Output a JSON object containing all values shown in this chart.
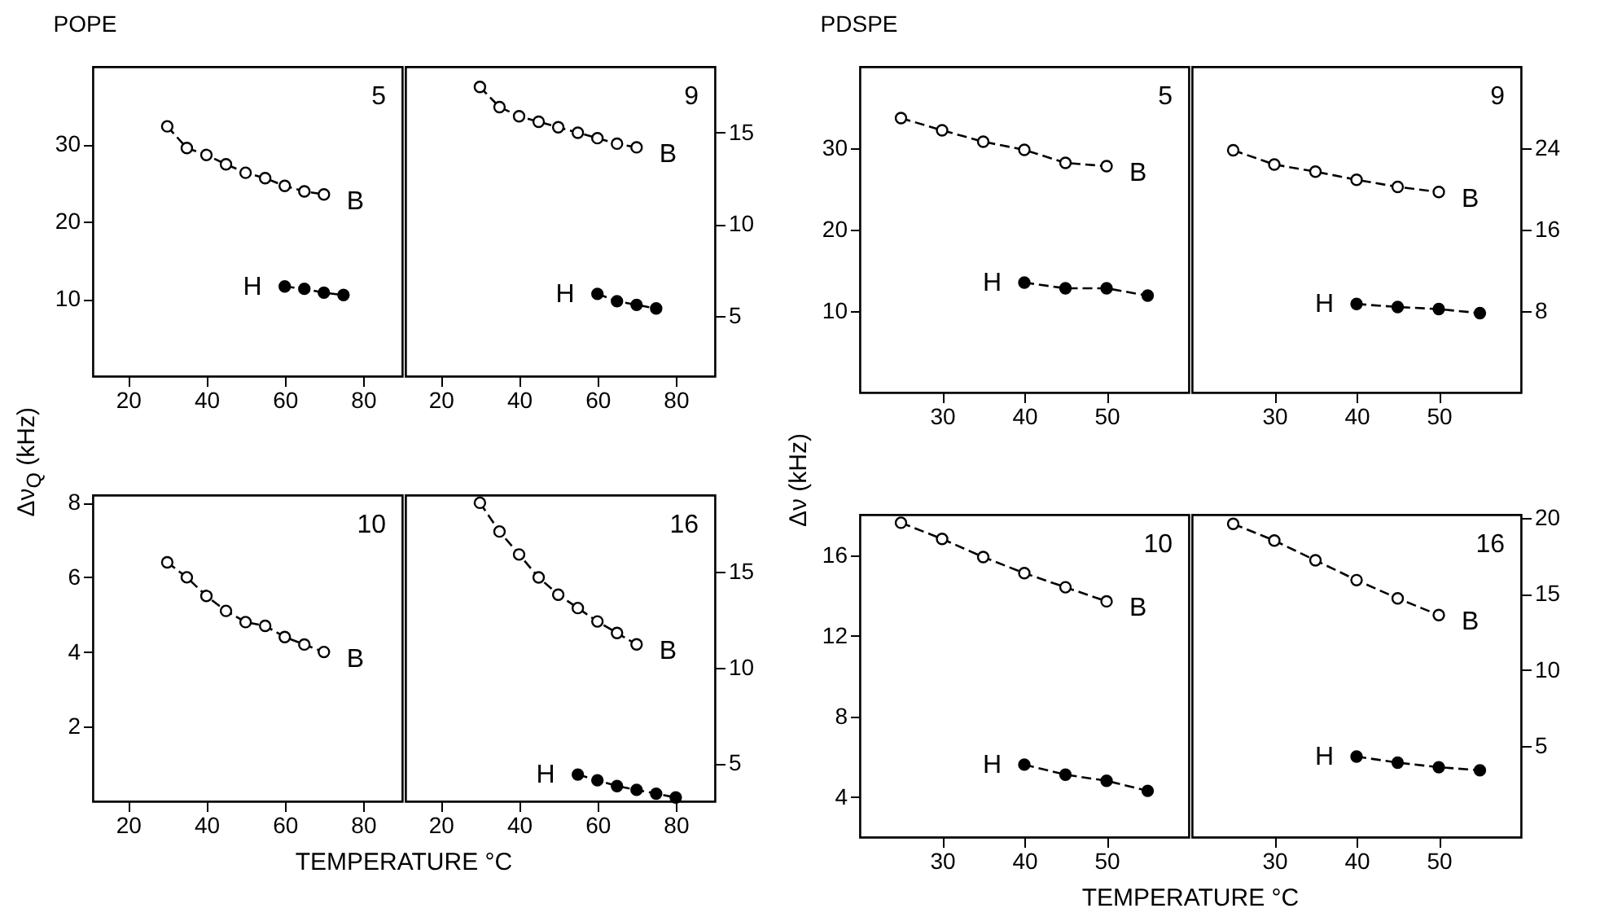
{
  "chart_data": [
    {
      "type": "line",
      "title": "POPE",
      "ylabel": "Δν$_{Q}$ (kHz)",
      "annotations": [
        "5"
      ],
      "marker": "circle",
      "line_style": "dashed",
      "xlim": [
        11,
        90
      ],
      "xticks": [
        20,
        40,
        60,
        80
      ],
      "ylim": [
        0,
        40
      ],
      "yticks": [
        10,
        20,
        30
      ],
      "series": [
        {
          "name": "B",
          "color": "#000000",
          "x": [
            30,
            35,
            40,
            45,
            50,
            55,
            60,
            65,
            70
          ],
          "values": [
            32.3,
            29.5,
            28.6,
            27.4,
            26.3,
            25.6,
            24.6,
            23.9,
            23.5
          ]
        },
        {
          "name": "H",
          "color": "#000000",
          "x": [
            60,
            65,
            70,
            75
          ],
          "values": [
            11.6,
            11.3,
            10.8,
            10.5
          ]
        }
      ]
    },
    {
      "type": "line",
      "annotations": [
        "9"
      ],
      "marker": "circle",
      "line_style": "dashed",
      "xlim": [
        11,
        90
      ],
      "xticks": [
        20,
        40,
        60,
        80
      ],
      "ylim": [
        1.7,
        18.6
      ],
      "yticks": [
        5,
        10,
        15
      ],
      "series": [
        {
          "name": "B",
          "color": "#000000",
          "x": [
            30,
            35,
            40,
            45,
            50,
            55,
            60,
            65,
            70
          ],
          "values": [
            17.5,
            16.4,
            15.9,
            15.6,
            15.3,
            15.0,
            14.7,
            14.4,
            14.2
          ]
        },
        {
          "name": "H",
          "color": "#000000",
          "x": [
            60,
            65,
            70,
            75
          ],
          "values": [
            6.2,
            5.8,
            5.6,
            5.4
          ]
        }
      ]
    },
    {
      "type": "line",
      "xlabel": "TEMPERATURE °C",
      "annotations": [
        "10"
      ],
      "marker": "circle",
      "line_style": "dashed",
      "xlim": [
        11,
        90
      ],
      "xticks": [
        20,
        40,
        60,
        80
      ],
      "ylim": [
        0,
        8.2
      ],
      "yticks": [
        2,
        4,
        6,
        8
      ],
      "series": [
        {
          "name": "B",
          "color": "#000000",
          "x": [
            30,
            35,
            40,
            45,
            50,
            55,
            60,
            65,
            70
          ],
          "values": [
            6.4,
            6.0,
            5.5,
            5.1,
            4.8,
            4.7,
            4.4,
            4.2,
            4.0
          ]
        }
      ]
    },
    {
      "type": "line",
      "annotations": [
        "16"
      ],
      "marker": "circle",
      "line_style": "dashed",
      "xlim": [
        11,
        90
      ],
      "xticks": [
        20,
        40,
        60,
        80
      ],
      "ylim": [
        3,
        19
      ],
      "yticks": [
        5,
        10,
        15
      ],
      "series": [
        {
          "name": "B",
          "color": "#000000",
          "x": [
            30,
            35,
            40,
            45,
            50,
            55,
            60,
            65,
            70
          ],
          "values": [
            18.6,
            17.1,
            15.9,
            14.7,
            13.8,
            13.1,
            12.4,
            11.8,
            11.2
          ]
        },
        {
          "name": "H",
          "color": "#000000",
          "x": [
            55,
            60,
            65,
            70,
            75,
            80
          ],
          "values": [
            4.4,
            4.1,
            3.8,
            3.6,
            3.4,
            3.2
          ]
        }
      ]
    },
    {
      "type": "line",
      "title": "PDSPE",
      "ylabel": "Δν (kHz)",
      "annotations": [
        "5"
      ],
      "marker": "circle",
      "line_style": "dashed",
      "xlim": [
        20,
        60
      ],
      "xticks": [
        30,
        40,
        50
      ],
      "ylim": [
        0,
        40
      ],
      "yticks": [
        10,
        20,
        30
      ],
      "series": [
        {
          "name": "B",
          "color": "#000000",
          "x": [
            25,
            30,
            35,
            40,
            45,
            50
          ],
          "values": [
            33.7,
            32.2,
            30.8,
            29.8,
            28.2,
            27.8
          ]
        },
        {
          "name": "H",
          "color": "#000000",
          "x": [
            40,
            45,
            50,
            55
          ],
          "values": [
            13.5,
            12.8,
            12.8,
            11.9
          ]
        }
      ]
    },
    {
      "type": "line",
      "annotations": [
        "9"
      ],
      "marker": "circle",
      "line_style": "dashed",
      "xlim": [
        20,
        60
      ],
      "xticks": [
        30,
        40,
        50
      ],
      "ylim": [
        0,
        32
      ],
      "yticks": [
        8,
        16,
        24
      ],
      "series": [
        {
          "name": "B",
          "color": "#000000",
          "x": [
            25,
            30,
            35,
            40,
            45,
            50
          ],
          "values": [
            23.8,
            22.4,
            21.7,
            20.9,
            20.2,
            19.7
          ]
        },
        {
          "name": "H",
          "color": "#000000",
          "x": [
            40,
            45,
            50,
            55
          ],
          "values": [
            8.7,
            8.4,
            8.2,
            7.8
          ]
        }
      ]
    },
    {
      "type": "line",
      "xlabel": "TEMPERATURE °C",
      "annotations": [
        "10"
      ],
      "marker": "circle",
      "line_style": "dashed",
      "xlim": [
        20,
        60
      ],
      "xticks": [
        30,
        40,
        50
      ],
      "ylim": [
        2,
        18
      ],
      "yticks": [
        4,
        8,
        12,
        16
      ],
      "series": [
        {
          "name": "B",
          "color": "#000000",
          "x": [
            25,
            30,
            35,
            40,
            45,
            50
          ],
          "values": [
            17.6,
            16.8,
            15.9,
            15.1,
            14.4,
            13.7
          ]
        },
        {
          "name": "H",
          "color": "#000000",
          "x": [
            40,
            45,
            50,
            55
          ],
          "values": [
            5.6,
            5.1,
            4.8,
            4.3
          ]
        }
      ]
    },
    {
      "type": "line",
      "annotations": [
        "16"
      ],
      "marker": "circle",
      "line_style": "dashed",
      "xlim": [
        20,
        60
      ],
      "xticks": [
        30,
        40,
        50
      ],
      "ylim": [
        -1,
        20.2
      ],
      "yticks": [
        5,
        10,
        15,
        20
      ],
      "series": [
        {
          "name": "B",
          "color": "#000000",
          "x": [
            25,
            30,
            35,
            40,
            45,
            50
          ],
          "values": [
            19.6,
            18.5,
            17.2,
            15.9,
            14.7,
            13.6
          ]
        },
        {
          "name": "H",
          "color": "#000000",
          "x": [
            40,
            45,
            50,
            55
          ],
          "values": [
            4.3,
            3.9,
            3.6,
            3.4
          ]
        }
      ]
    }
  ]
}
